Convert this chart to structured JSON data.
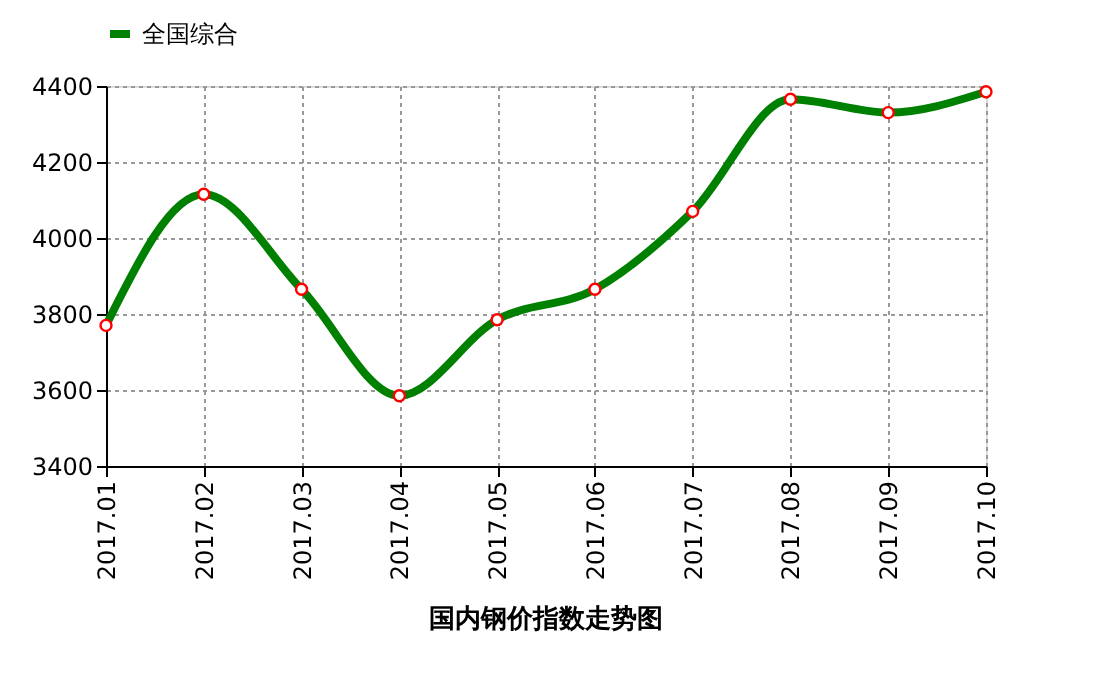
{
  "chart_data": {
    "type": "line",
    "title": "国内钢价指数走势图",
    "categories": [
      "2017.01",
      "2017.02",
      "2017.03",
      "2017.04",
      "2017.05",
      "2017.06",
      "2017.07",
      "2017.08",
      "2017.09",
      "2017.10"
    ],
    "series": [
      {
        "name": "全国综合",
        "color": "#008000",
        "values": [
          3770,
          4115,
          3865,
          3585,
          3785,
          3865,
          4070,
          4365,
          4330,
          4385
        ]
      }
    ],
    "ylim": [
      3400,
      4400
    ],
    "yticks": [
      3400,
      3600,
      3800,
      4000,
      4200,
      4400
    ],
    "grid": true,
    "legend": "top",
    "marker": "circle",
    "line_style": "solid"
  }
}
